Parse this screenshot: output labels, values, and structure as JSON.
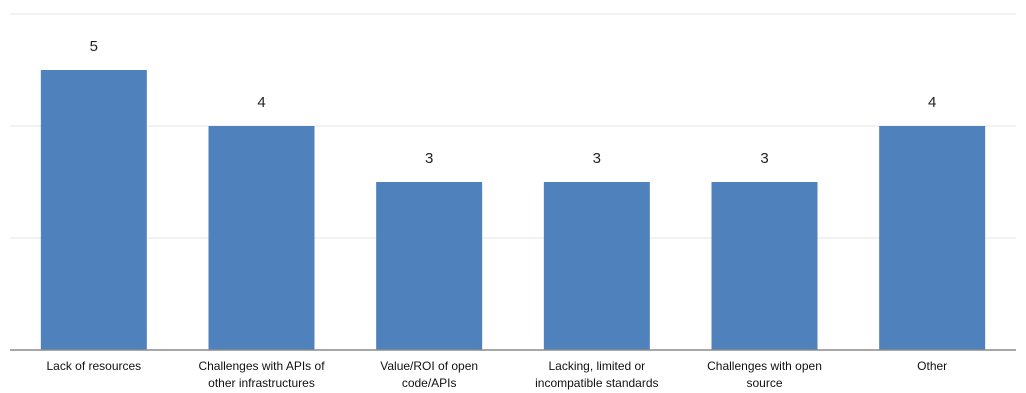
{
  "chart_data": {
    "type": "bar",
    "title": "",
    "xlabel": "",
    "ylabel": "",
    "categories": [
      [
        "Lack of resources"
      ],
      [
        "Challenges with APIs of",
        "other infrastructures"
      ],
      [
        "Value/ROI of open",
        "code/APIs"
      ],
      [
        "Lacking, limited or",
        "incompatible standards"
      ],
      [
        "Challenges with open",
        "source"
      ],
      [
        "Other"
      ]
    ],
    "values": [
      5,
      4,
      3,
      3,
      3,
      4
    ],
    "data_labels": [
      "5",
      "4",
      "3",
      "3",
      "3",
      "4"
    ],
    "ylim": [
      0,
      6
    ],
    "grid": true,
    "legend": "none",
    "colors": {
      "bar": "#4f81bd",
      "grid": "#e6e6e6",
      "axis": "#8c8c8c"
    }
  }
}
